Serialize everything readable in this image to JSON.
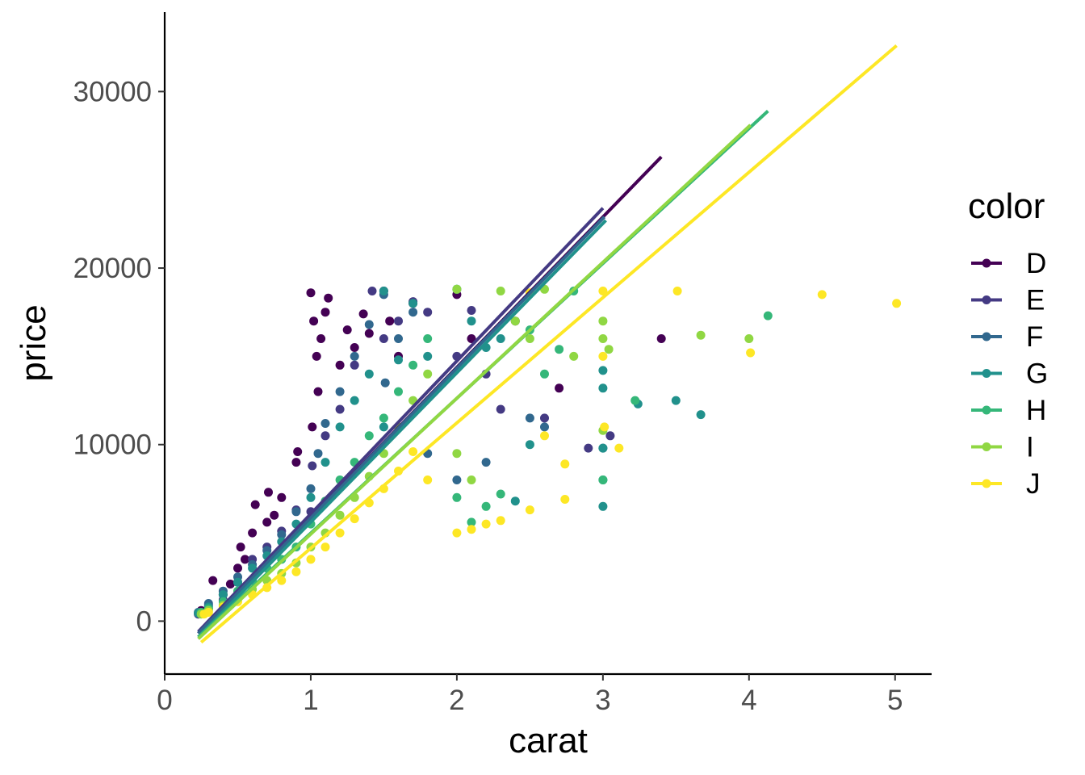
{
  "chart_data": {
    "type": "scatter",
    "xlabel": "carat",
    "ylabel": "price",
    "xlim": [
      0,
      5.25
    ],
    "ylim": [
      -3000,
      34500
    ],
    "x_ticks": [
      0,
      1,
      2,
      3,
      4,
      5
    ],
    "y_ticks": [
      0,
      10000,
      20000,
      30000
    ],
    "x_tick_labels": [
      "0",
      "1",
      "2",
      "3",
      "4",
      "5"
    ],
    "y_tick_labels": [
      "0",
      "10000",
      "20000",
      "30000"
    ],
    "grid": false,
    "trend": "linear fit per series",
    "legend": {
      "title": "color",
      "position": "right"
    },
    "series": [
      {
        "name": "D",
        "color": "#440154",
        "fit": {
          "x": [
            0.23,
            3.4
          ],
          "y": [
            -700,
            26300
          ]
        },
        "points": [
          [
            0.25,
            600
          ],
          [
            0.3,
            700
          ],
          [
            0.33,
            2300
          ],
          [
            0.4,
            1500
          ],
          [
            0.45,
            2100
          ],
          [
            0.5,
            3000
          ],
          [
            0.52,
            4200
          ],
          [
            0.55,
            3500
          ],
          [
            0.6,
            5000
          ],
          [
            0.62,
            6600
          ],
          [
            0.7,
            5600
          ],
          [
            0.71,
            7300
          ],
          [
            0.75,
            6000
          ],
          [
            0.8,
            7000
          ],
          [
            0.9,
            9000
          ],
          [
            0.91,
            9600
          ],
          [
            1.0,
            18600
          ],
          [
            1.01,
            11000
          ],
          [
            1.02,
            17000
          ],
          [
            1.04,
            15000
          ],
          [
            1.05,
            13000
          ],
          [
            1.07,
            16000
          ],
          [
            1.1,
            17500
          ],
          [
            1.12,
            18300
          ],
          [
            1.2,
            14500
          ],
          [
            1.25,
            16500
          ],
          [
            1.3,
            15500
          ],
          [
            1.36,
            17400
          ],
          [
            1.4,
            16300
          ],
          [
            1.5,
            18700
          ],
          [
            1.54,
            17000
          ],
          [
            1.6,
            15000
          ],
          [
            1.7,
            18000
          ],
          [
            2.0,
            18500
          ],
          [
            2.1,
            16000
          ],
          [
            2.4,
            17000
          ],
          [
            2.7,
            13200
          ],
          [
            3.4,
            16000
          ]
        ]
      },
      {
        "name": "E",
        "color": "#443a83",
        "fit": {
          "x": [
            0.23,
            3.0
          ],
          "y": [
            -600,
            23400
          ]
        },
        "points": [
          [
            0.23,
            400
          ],
          [
            0.3,
            900
          ],
          [
            0.4,
            1200
          ],
          [
            0.5,
            2200
          ],
          [
            0.6,
            3500
          ],
          [
            0.7,
            4200
          ],
          [
            0.8,
            5100
          ],
          [
            0.9,
            6300
          ],
          [
            1.0,
            6200
          ],
          [
            1.01,
            8800
          ],
          [
            1.1,
            10500
          ],
          [
            1.2,
            12000
          ],
          [
            1.3,
            14500
          ],
          [
            1.42,
            18700
          ],
          [
            1.5,
            16000
          ],
          [
            1.6,
            17000
          ],
          [
            1.7,
            18100
          ],
          [
            1.8,
            17500
          ],
          [
            2.0,
            15000
          ],
          [
            2.1,
            17600
          ],
          [
            2.2,
            14000
          ],
          [
            2.3,
            12000
          ],
          [
            2.6,
            11500
          ],
          [
            2.9,
            9800
          ],
          [
            3.05,
            10500
          ]
        ]
      },
      {
        "name": "F",
        "color": "#31688e",
        "fit": {
          "x": [
            0.23,
            3.01
          ],
          "y": [
            -700,
            22900
          ]
        },
        "points": [
          [
            0.23,
            500
          ],
          [
            0.3,
            1000
          ],
          [
            0.4,
            1700
          ],
          [
            0.5,
            2500
          ],
          [
            0.6,
            3200
          ],
          [
            0.7,
            4000
          ],
          [
            0.8,
            4900
          ],
          [
            0.9,
            6200
          ],
          [
            1.0,
            7500
          ],
          [
            1.05,
            9500
          ],
          [
            1.1,
            11200
          ],
          [
            1.2,
            13000
          ],
          [
            1.3,
            15000
          ],
          [
            1.4,
            16800
          ],
          [
            1.5,
            18500
          ],
          [
            1.51,
            13500
          ],
          [
            1.6,
            16000
          ],
          [
            1.7,
            17500
          ],
          [
            1.8,
            9500
          ],
          [
            2.0,
            8000
          ],
          [
            2.2,
            9000
          ],
          [
            2.5,
            11500
          ],
          [
            2.6,
            11000
          ],
          [
            3.0,
            9800
          ]
        ]
      },
      {
        "name": "G",
        "color": "#21918c",
        "fit": {
          "x": [
            0.23,
            3.02
          ],
          "y": [
            -900,
            22700
          ]
        },
        "points": [
          [
            0.23,
            450
          ],
          [
            0.3,
            800
          ],
          [
            0.4,
            1500
          ],
          [
            0.5,
            2200
          ],
          [
            0.6,
            3000
          ],
          [
            0.7,
            3700
          ],
          [
            0.8,
            4500
          ],
          [
            0.9,
            5500
          ],
          [
            1.0,
            7000
          ],
          [
            1.1,
            9000
          ],
          [
            1.2,
            11000
          ],
          [
            1.3,
            12500
          ],
          [
            1.4,
            14000
          ],
          [
            1.5,
            18700
          ],
          [
            1.5,
            11000
          ],
          [
            1.6,
            14800
          ],
          [
            1.7,
            18000
          ],
          [
            1.8,
            15000
          ],
          [
            2.0,
            18800
          ],
          [
            2.1,
            17000
          ],
          [
            2.2,
            15500
          ],
          [
            2.3,
            16000
          ],
          [
            2.4,
            6800
          ],
          [
            2.5,
            10000
          ],
          [
            3.0,
            14200
          ],
          [
            3.0,
            13200
          ],
          [
            3.0,
            8000
          ],
          [
            3.0,
            6500
          ],
          [
            3.0,
            9800
          ],
          [
            3.24,
            12300
          ],
          [
            3.5,
            12500
          ],
          [
            3.67,
            11700
          ]
        ]
      },
      {
        "name": "H",
        "color": "#35b779",
        "fit": {
          "x": [
            0.23,
            4.13
          ],
          "y": [
            -900,
            28900
          ]
        },
        "points": [
          [
            0.25,
            500
          ],
          [
            0.3,
            700
          ],
          [
            0.4,
            1100
          ],
          [
            0.5,
            1700
          ],
          [
            0.6,
            2300
          ],
          [
            0.7,
            3000
          ],
          [
            0.8,
            3500
          ],
          [
            0.9,
            4200
          ],
          [
            1.0,
            5500
          ],
          [
            1.1,
            6800
          ],
          [
            1.2,
            8000
          ],
          [
            1.3,
            9000
          ],
          [
            1.4,
            10500
          ],
          [
            1.5,
            11500
          ],
          [
            1.6,
            13000
          ],
          [
            1.7,
            14500
          ],
          [
            1.8,
            16000
          ],
          [
            2.0,
            18800
          ],
          [
            2.0,
            7000
          ],
          [
            2.1,
            5600
          ],
          [
            2.2,
            6500
          ],
          [
            2.3,
            7200
          ],
          [
            2.5,
            16500
          ],
          [
            2.6,
            14000
          ],
          [
            2.7,
            15400
          ],
          [
            2.8,
            18700
          ],
          [
            3.0,
            8000
          ],
          [
            3.22,
            12500
          ],
          [
            4.13,
            17300
          ]
        ]
      },
      {
        "name": "I",
        "color": "#90d743",
        "fit": {
          "x": [
            0.23,
            4.01
          ],
          "y": [
            -1000,
            28100
          ]
        },
        "points": [
          [
            0.25,
            400
          ],
          [
            0.3,
            600
          ],
          [
            0.4,
            900
          ],
          [
            0.5,
            1300
          ],
          [
            0.6,
            1800
          ],
          [
            0.7,
            2300
          ],
          [
            0.8,
            2700
          ],
          [
            0.9,
            3300
          ],
          [
            1.0,
            4200
          ],
          [
            1.1,
            5000
          ],
          [
            1.2,
            6000
          ],
          [
            1.3,
            7000
          ],
          [
            1.4,
            8200
          ],
          [
            1.5,
            9500
          ],
          [
            1.6,
            11000
          ],
          [
            1.7,
            12500
          ],
          [
            1.8,
            14000
          ],
          [
            2.0,
            18800
          ],
          [
            2.0,
            9500
          ],
          [
            2.1,
            8000
          ],
          [
            2.3,
            18700
          ],
          [
            2.4,
            17000
          ],
          [
            2.5,
            16000
          ],
          [
            2.6,
            18800
          ],
          [
            2.8,
            15000
          ],
          [
            3.0,
            17000
          ],
          [
            3.0,
            16000
          ],
          [
            3.0,
            10800
          ],
          [
            3.04,
            15400
          ],
          [
            3.67,
            16200
          ],
          [
            4.0,
            16000
          ]
        ]
      },
      {
        "name": "J",
        "color": "#fde725",
        "fit": {
          "x": [
            0.25,
            5.01
          ],
          "y": [
            -1200,
            32600
          ]
        },
        "points": [
          [
            0.27,
            400
          ],
          [
            0.3,
            500
          ],
          [
            0.4,
            800
          ],
          [
            0.5,
            1100
          ],
          [
            0.6,
            1500
          ],
          [
            0.7,
            1900
          ],
          [
            0.8,
            2300
          ],
          [
            0.9,
            2800
          ],
          [
            1.0,
            3500
          ],
          [
            1.1,
            4200
          ],
          [
            1.2,
            5000
          ],
          [
            1.3,
            5800
          ],
          [
            1.4,
            6700
          ],
          [
            1.5,
            7500
          ],
          [
            1.6,
            8500
          ],
          [
            1.7,
            9600
          ],
          [
            1.8,
            8000
          ],
          [
            2.0,
            5000
          ],
          [
            2.1,
            5200
          ],
          [
            2.2,
            5500
          ],
          [
            2.3,
            5700
          ],
          [
            2.5,
            18600
          ],
          [
            2.5,
            6300
          ],
          [
            2.6,
            10500
          ],
          [
            2.74,
            6900
          ],
          [
            2.74,
            8900
          ],
          [
            3.0,
            18700
          ],
          [
            3.0,
            15000
          ],
          [
            3.01,
            11000
          ],
          [
            3.11,
            9800
          ],
          [
            3.51,
            18700
          ],
          [
            4.01,
            15200
          ],
          [
            4.5,
            18500
          ],
          [
            5.01,
            18000
          ]
        ]
      }
    ]
  }
}
